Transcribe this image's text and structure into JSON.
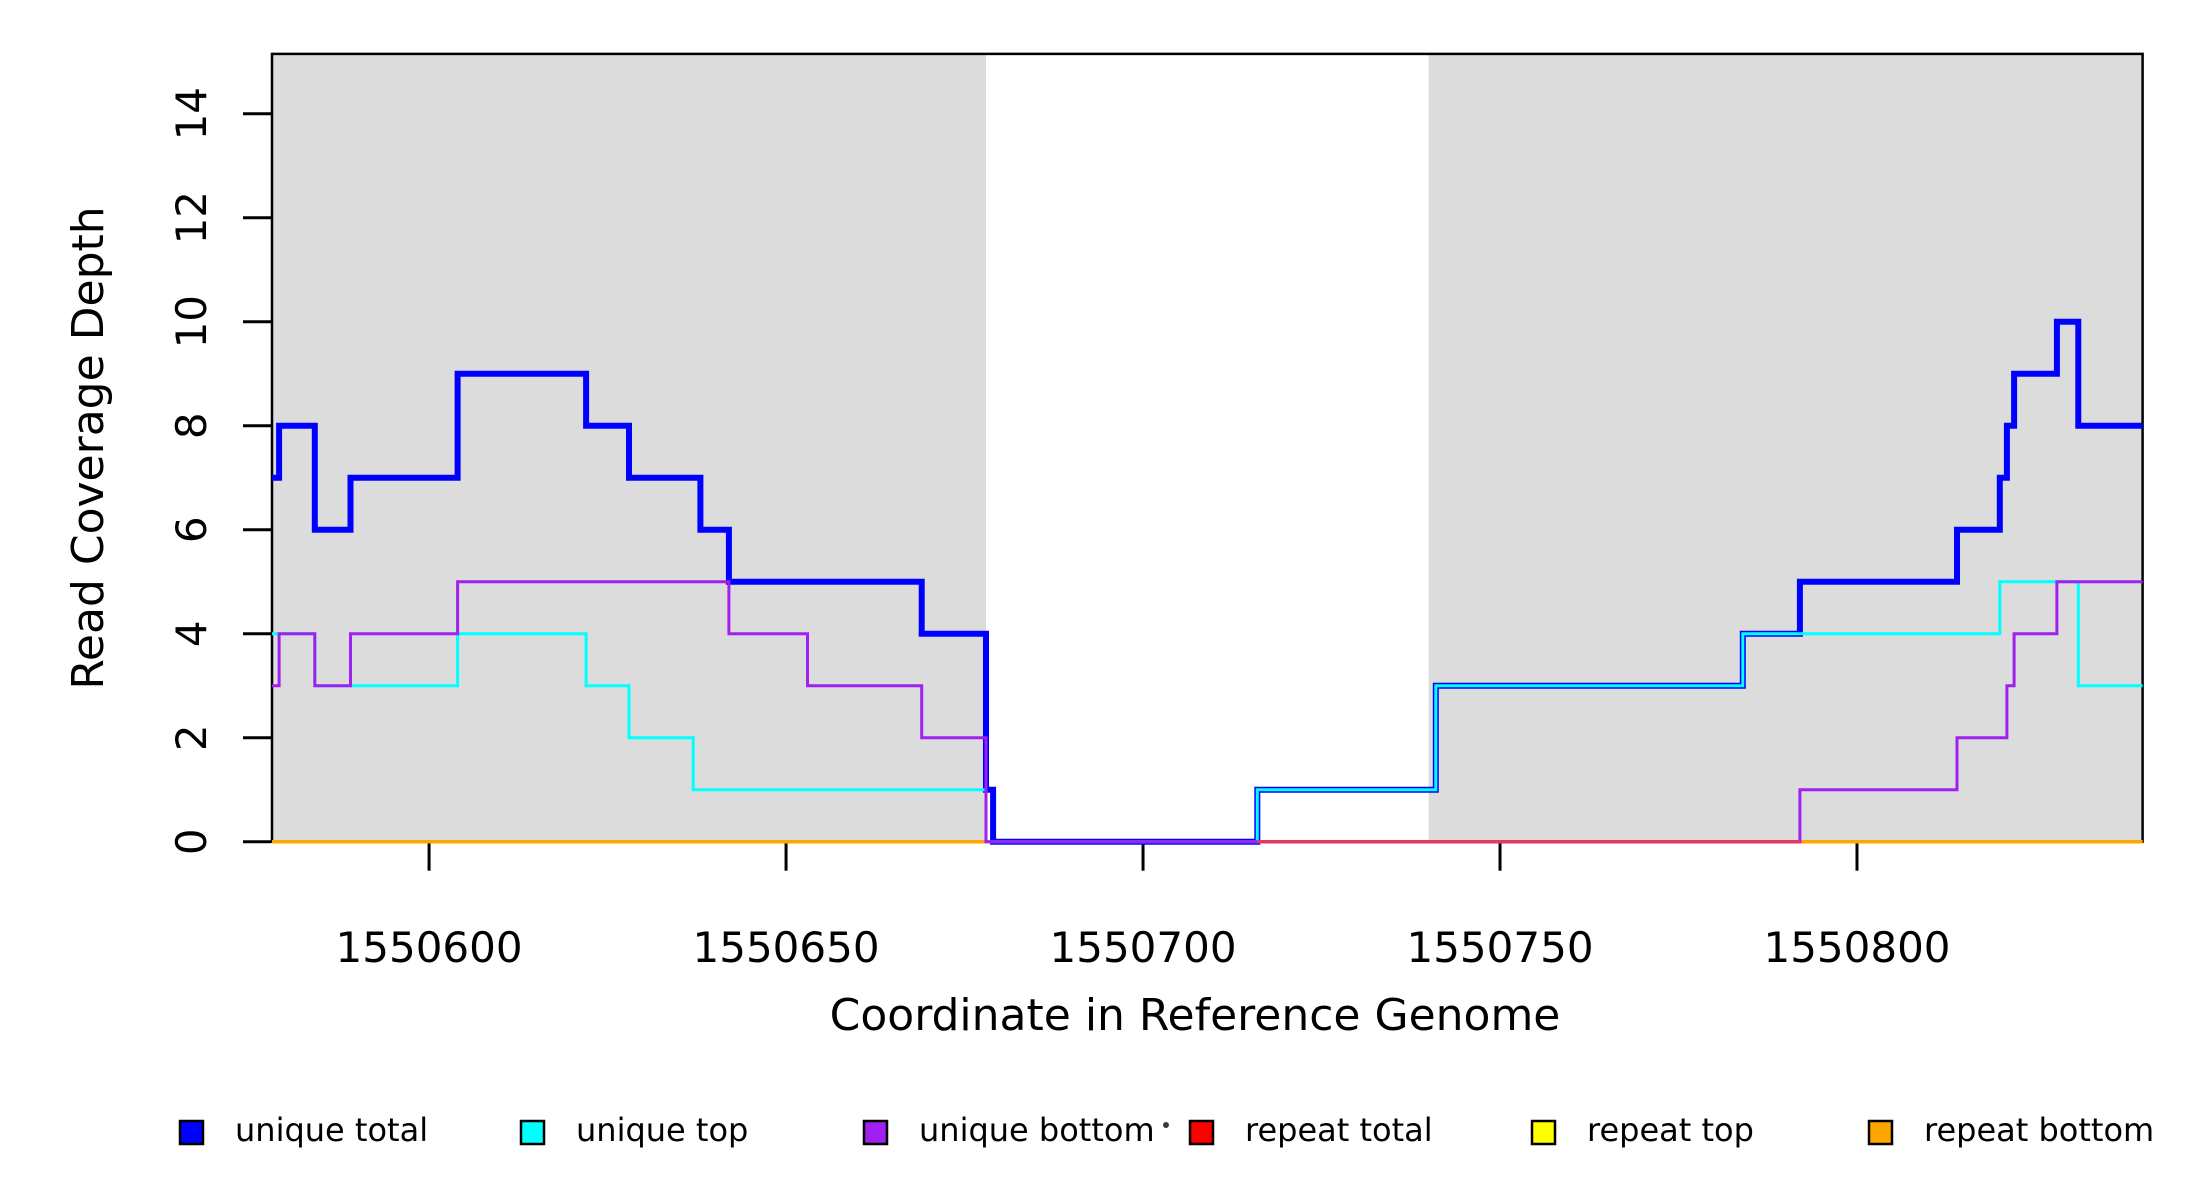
{
  "chart_data": {
    "type": "line",
    "step": true,
    "title": "",
    "xlabel": "Coordinate in Reference Genome",
    "ylabel": "Read Coverage Depth",
    "xlim": [
      1550578,
      1550840
    ],
    "ylim": [
      0,
      15.15
    ],
    "x_ticks": [
      1550600,
      1550650,
      1550700,
      1550750,
      1550800
    ],
    "y_ticks": [
      0,
      2,
      4,
      6,
      8,
      10,
      12,
      14
    ],
    "grid": false,
    "background": "#FFFFFF",
    "shade_color": "#DCDCDC",
    "axis_color": "#000000",
    "shaded_regions": [
      {
        "from": 1550578,
        "to": 1550678
      },
      {
        "from": 1550740,
        "to": 1550840
      }
    ],
    "series": [
      {
        "name": "unique total",
        "color": "#0000FF",
        "line_width": 6,
        "steps": [
          [
            1550578,
            7
          ],
          [
            1550579,
            8
          ],
          [
            1550584,
            6
          ],
          [
            1550589,
            7
          ],
          [
            1550604,
            9
          ],
          [
            1550622,
            8
          ],
          [
            1550628,
            7
          ],
          [
            1550638,
            6
          ],
          [
            1550642,
            5
          ],
          [
            1550669,
            4
          ],
          [
            1550678,
            1
          ],
          [
            1550679,
            0
          ],
          [
            1550716,
            1
          ],
          [
            1550741,
            3
          ],
          [
            1550784,
            4
          ],
          [
            1550792,
            5
          ],
          [
            1550814,
            6
          ],
          [
            1550820,
            7
          ],
          [
            1550821,
            8
          ],
          [
            1550822,
            9
          ],
          [
            1550828,
            10
          ],
          [
            1550831,
            8
          ]
        ]
      },
      {
        "name": "unique top",
        "color": "#00FFFF",
        "line_width": 3,
        "steps": [
          [
            1550578,
            4
          ],
          [
            1550584,
            3
          ],
          [
            1550604,
            4
          ],
          [
            1550622,
            3
          ],
          [
            1550628,
            2
          ],
          [
            1550637,
            1
          ],
          [
            1550678,
            0
          ],
          [
            1550716,
            1
          ],
          [
            1550741,
            3
          ],
          [
            1550784,
            4
          ],
          [
            1550820,
            5
          ],
          [
            1550831,
            3
          ]
        ]
      },
      {
        "name": "unique bottom",
        "color": "#A020F0",
        "line_width": 3,
        "steps": [
          [
            1550578,
            3
          ],
          [
            1550579,
            4
          ],
          [
            1550584,
            3
          ],
          [
            1550589,
            4
          ],
          [
            1550604,
            5
          ],
          [
            1550642,
            4
          ],
          [
            1550653,
            3
          ],
          [
            1550669,
            2
          ],
          [
            1550678,
            0
          ],
          [
            1550792,
            1
          ],
          [
            1550814,
            2
          ],
          [
            1550821,
            3
          ],
          [
            1550822,
            4
          ],
          [
            1550828,
            5
          ]
        ]
      },
      {
        "name": "repeat total",
        "color": "#FF0000",
        "line_width": 3.5,
        "steps": [
          [
            1550578,
            0
          ]
        ],
        "visible_zero_segment": [
          1550716,
          1550792
        ],
        "visible_zero_color": "#E03A60"
      },
      {
        "name": "repeat top",
        "color": "#FFFF00",
        "line_width": 3.5,
        "steps": [
          [
            1550578,
            0
          ]
        ]
      },
      {
        "name": "repeat bottom",
        "color": "#FFA500",
        "line_width": 3.5,
        "steps": [
          [
            1550578,
            0
          ]
        ]
      }
    ]
  },
  "legend": {
    "entries": [
      {
        "label": "unique total",
        "color": "#0000FF"
      },
      {
        "label": "unique top",
        "color": "#00FFFF"
      },
      {
        "label": "unique bottom",
        "color": "#A020F0"
      },
      {
        "label": "repeat total",
        "color": "#FF0000"
      },
      {
        "label": "repeat top",
        "color": "#FFFF00"
      },
      {
        "label": "repeat bottom",
        "color": "#FFA500"
      }
    ],
    "separator_dot_after_index": 2
  }
}
